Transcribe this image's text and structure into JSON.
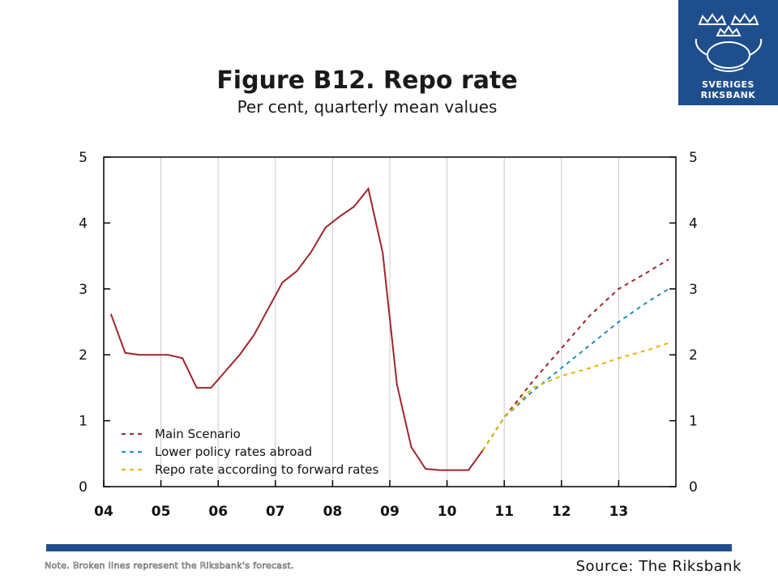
{
  "title": "Figure B12. Repo rate",
  "subtitle": "Per cent, quarterly mean values",
  "note": "Note. Broken lines represent the Riksbank's forecast.",
  "source": "Source: The Riksbank",
  "logo": {
    "line1": "SVERIGES",
    "line2": "RIKSBANK",
    "bg": "#1f4e8c"
  },
  "chart_data": {
    "type": "line",
    "ylim": [
      0,
      5
    ],
    "yticks": [
      0,
      1,
      2,
      3,
      4,
      5
    ],
    "xticks": [
      "04",
      "05",
      "06",
      "07",
      "08",
      "09",
      "10",
      "11",
      "12",
      "13"
    ],
    "xlim": [
      2004,
      2014
    ],
    "grid": true,
    "legend_position": "bottom-left",
    "series": [
      {
        "name": "",
        "style": "solid",
        "color": "#a0252e",
        "x": [
          2004.125,
          2004.375,
          2004.625,
          2004.875,
          2005.125,
          2005.375,
          2005.625,
          2005.875,
          2006.125,
          2006.375,
          2006.625,
          2006.875,
          2007.125,
          2007.375,
          2007.625,
          2007.875,
          2008.125,
          2008.375,
          2008.625,
          2008.875,
          2009.125,
          2009.375,
          2009.625,
          2009.875,
          2010.125,
          2010.375,
          2010.625
        ],
        "values": [
          2.62,
          2.03,
          2.0,
          2.0,
          2.0,
          1.95,
          1.5,
          1.5,
          1.75,
          2.0,
          2.3,
          2.7,
          3.1,
          3.27,
          3.56,
          3.93,
          4.1,
          4.25,
          4.52,
          3.55,
          1.55,
          0.6,
          0.27,
          0.25,
          0.25,
          0.25,
          0.55
        ]
      },
      {
        "name": "Main Scenario",
        "style": "dashed",
        "color": "#a0252e",
        "x": [
          2010.625,
          2011.0,
          2011.5,
          2012.0,
          2012.5,
          2013.0,
          2013.5,
          2013.875
        ],
        "values": [
          0.55,
          1.05,
          1.6,
          2.1,
          2.6,
          3.0,
          3.25,
          3.45
        ]
      },
      {
        "name": "Lower policy rates abroad",
        "style": "dashed",
        "color": "#1b8fc8",
        "x": [
          2010.625,
          2011.0,
          2011.5,
          2012.0,
          2012.5,
          2013.0,
          2013.5,
          2013.875
        ],
        "values": [
          0.55,
          1.05,
          1.45,
          1.8,
          2.15,
          2.5,
          2.8,
          3.0
        ]
      },
      {
        "name": "Repo rate according to forward rates",
        "style": "dashed",
        "color": "#e6b400",
        "x": [
          2010.625,
          2011.0,
          2011.5,
          2012.0,
          2012.5,
          2013.0,
          2013.5,
          2013.875
        ],
        "values": [
          0.55,
          1.05,
          1.5,
          1.68,
          1.8,
          1.95,
          2.07,
          2.18
        ]
      }
    ]
  }
}
